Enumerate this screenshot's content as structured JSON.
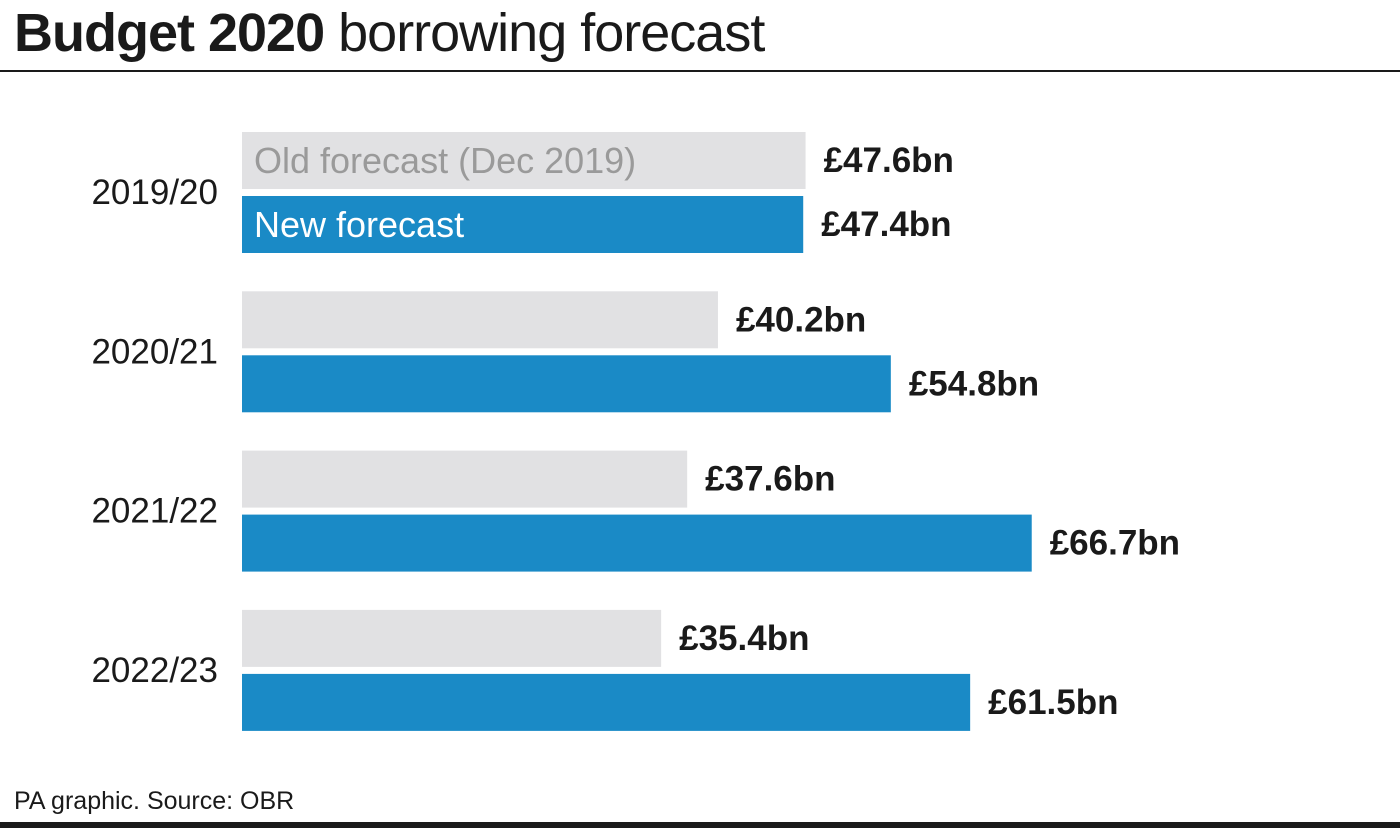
{
  "title": {
    "bold": "Budget 2020",
    "light": "borrowing forecast"
  },
  "source": "PA graphic. Source: OBR",
  "colors": {
    "old_forecast": "#e1e1e3",
    "new_forecast": "#1a8ac6",
    "old_label_text": "#9a9a9a",
    "new_label_text": "#ffffff",
    "text": "#1a1a1a"
  },
  "chart_data": {
    "type": "bar",
    "orientation": "horizontal",
    "categories": [
      "2019/20",
      "2020/21",
      "2021/22",
      "2022/23"
    ],
    "series": [
      {
        "name": "Old forecast (Dec 2019)",
        "values": [
          47.6,
          40.2,
          37.6,
          35.4
        ],
        "value_labels": [
          "£47.6bn",
          "£40.2bn",
          "£37.6bn",
          "£35.4bn"
        ]
      },
      {
        "name": "New forecast",
        "values": [
          47.4,
          54.8,
          66.7,
          61.5
        ],
        "value_labels": [
          "£47.4bn",
          "£54.8bn",
          "£66.7bn",
          "£61.5bn"
        ]
      }
    ],
    "xlim": [
      0,
      70
    ],
    "grid": false,
    "legend": "inside first bar pair"
  }
}
